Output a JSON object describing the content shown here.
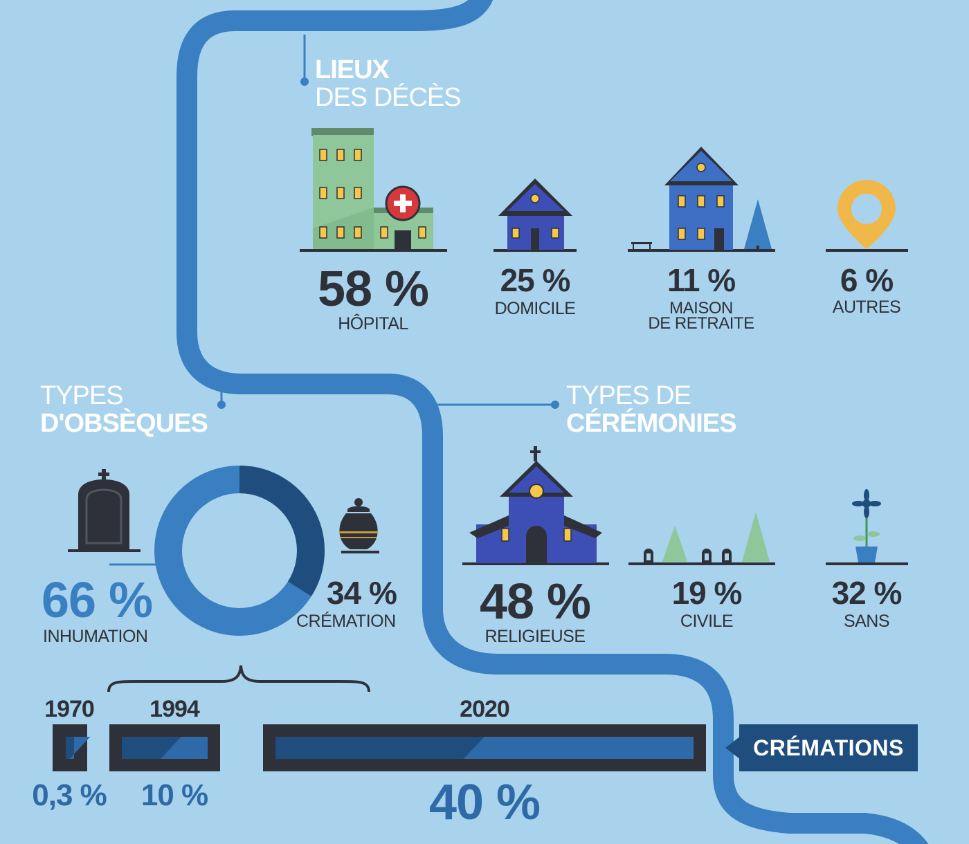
{
  "colors": {
    "background": "#a9d3ec",
    "timeline": "#3a7fc1",
    "dark": "#2e3139",
    "navy": "#1e4d7e",
    "accent_blue": "#3a7fc1"
  },
  "icons": {
    "places": [
      "hospital-icon",
      "house-icon",
      "retirement-home-icon",
      "location-pin-icon"
    ],
    "funerals": [
      "tombstone-icon",
      "urn-icon"
    ],
    "ceremonies": [
      "church-icon",
      "trees-graves-icon",
      "flower-pot-icon"
    ]
  },
  "lieux": {
    "title_line1": "LIEUX",
    "title_line2": "DES DÉCÈS",
    "items": [
      {
        "value": "58 %",
        "label": "HÔPITAL"
      },
      {
        "value": "25 %",
        "label": "DOMICILE"
      },
      {
        "value": "11 %",
        "label_line1": "MAISON",
        "label_line2": "DE RETRAITE"
      },
      {
        "value": "6 %",
        "label": "AUTRES"
      }
    ]
  },
  "obseques": {
    "title_line1": "TYPES",
    "title_line2": "D'OBSÈQUES",
    "inhumation": {
      "value": "66 %",
      "label": "INHUMATION",
      "fraction": 0.66
    },
    "cremation": {
      "value": "34 %",
      "label": "CRÉMATION",
      "fraction": 0.34
    }
  },
  "ceremonies": {
    "title_line1": "TYPES DE",
    "title_line2": "CÉRÉMONIES",
    "items": [
      {
        "value": "48 %",
        "label": "RELIGIEUSE"
      },
      {
        "value": "19 %",
        "label": "CIVILE"
      },
      {
        "value": "32 %",
        "label": "SANS"
      }
    ]
  },
  "cremations": {
    "badge": "CRÉMATIONS",
    "bars": [
      {
        "year": "1970",
        "value": "0,3 %",
        "fraction": 0.003
      },
      {
        "year": "1994",
        "value": "10 %",
        "fraction": 0.1
      },
      {
        "year": "2020",
        "value": "40 %",
        "fraction": 0.4
      }
    ]
  }
}
